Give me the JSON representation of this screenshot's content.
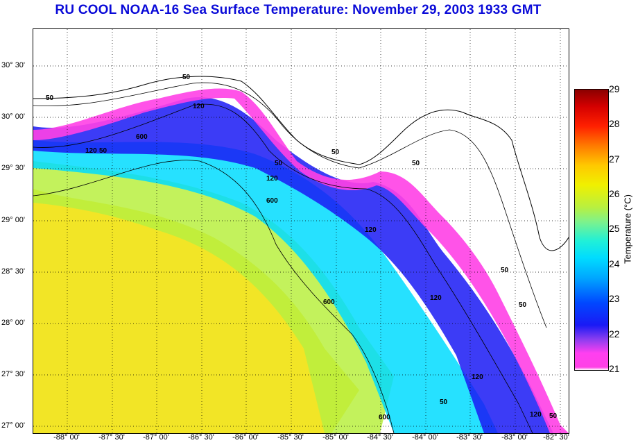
{
  "title": "RU COOL  NOAA-16  Sea Surface Temperature:  November 29, 2003 1933 GMT",
  "map": {
    "x_ticks": [
      "-88° 00'",
      "-87° 30'",
      "-87° 00'",
      "-86° 30'",
      "-86° 00'",
      "-85° 30'",
      "-85° 00'",
      "-84° 30'",
      "-84° 00'",
      "-83° 30'",
      "-83° 00'",
      "-82° 30'"
    ],
    "y_ticks": [
      "30° 30'",
      "30° 00'",
      "29° 30'",
      "29° 00'",
      "28° 30'",
      "28° 00'",
      "27° 30'",
      "27° 00'"
    ],
    "contour_labels": [
      "50",
      "50",
      "120",
      "600",
      "120",
      "50",
      "50",
      "50",
      "120",
      "600",
      "120",
      "600",
      "50",
      "120",
      "50",
      "120",
      "600",
      "50",
      "120",
      "50",
      "50"
    ]
  },
  "colorbar": {
    "ticks": [
      "29",
      "28",
      "27",
      "26",
      "25",
      "24",
      "23",
      "22",
      "21"
    ],
    "label": "Temperature (°C)",
    "range": [
      21,
      29
    ]
  },
  "colors": {
    "title": "#0a0ad8",
    "warm": "#f0e000",
    "mid": "#00dcff",
    "cool": "#1a1af5",
    "cold": "#ff40e6"
  }
}
